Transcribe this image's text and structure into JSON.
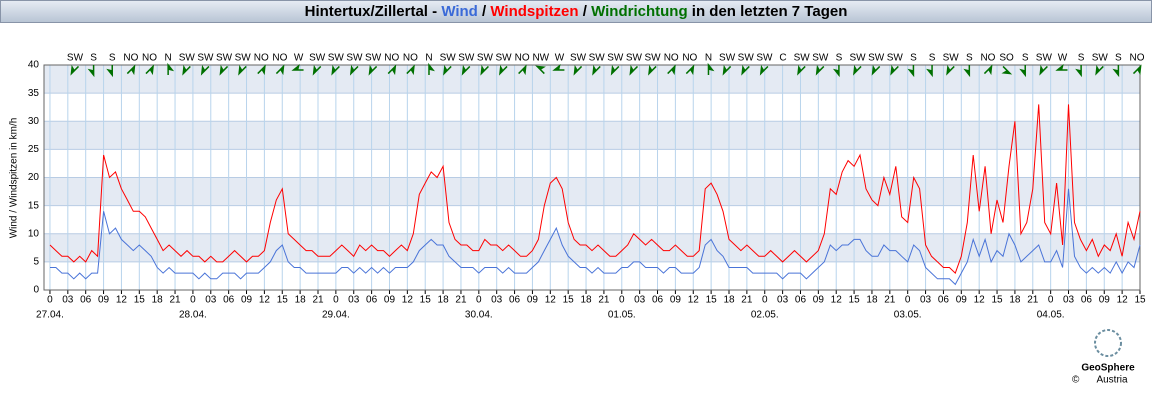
{
  "chart_data": {
    "type": "line",
    "title_prefix": "Hintertux/Zillertal -",
    "title_separator": "/",
    "title_suffix": "in den letzten 7 Tagen",
    "direction_name": "Windrichtung",
    "ylabel": "Wind / Windspitzen in km/h",
    "ylim": [
      0,
      40
    ],
    "yticks": [
      0,
      5,
      10,
      15,
      20,
      25,
      30,
      35,
      40
    ],
    "xlim": [
      -1,
      183
    ],
    "xticks": [
      0,
      {
        "value": 3,
        "label": "03"
      },
      {
        "value": 6,
        "label": "06"
      },
      {
        "value": 9,
        "label": "09"
      },
      12,
      15,
      18,
      21,
      {
        "value": 24,
        "label": "0"
      },
      {
        "value": 27,
        "label": "03"
      },
      {
        "value": 30,
        "label": "06"
      },
      {
        "value": 33,
        "label": "09"
      },
      {
        "value": 36,
        "label": "12"
      },
      {
        "value": 39,
        "label": "15"
      },
      {
        "value": 42,
        "label": "18"
      },
      {
        "value": 45,
        "label": "21"
      },
      {
        "value": 48,
        "label": "0"
      },
      {
        "value": 51,
        "label": "03"
      },
      {
        "value": 54,
        "label": "06"
      },
      {
        "value": 57,
        "label": "09"
      },
      {
        "value": 60,
        "label": "12"
      },
      {
        "value": 63,
        "label": "15"
      },
      {
        "value": 66,
        "label": "18"
      },
      {
        "value": 69,
        "label": "21"
      },
      {
        "value": 72,
        "label": "0"
      },
      {
        "value": 75,
        "label": "03"
      },
      {
        "value": 78,
        "label": "06"
      },
      {
        "value": 81,
        "label": "09"
      },
      {
        "value": 84,
        "label": "12"
      },
      {
        "value": 87,
        "label": "15"
      },
      {
        "value": 90,
        "label": "18"
      },
      {
        "value": 93,
        "label": "21"
      },
      {
        "value": 96,
        "label": "0"
      },
      {
        "value": 99,
        "label": "03"
      },
      {
        "value": 102,
        "label": "06"
      },
      {
        "value": 105,
        "label": "09"
      },
      {
        "value": 108,
        "label": "12"
      },
      {
        "value": 111,
        "label": "15"
      },
      {
        "value": 114,
        "label": "18"
      },
      {
        "value": 117,
        "label": "21"
      },
      {
        "value": 120,
        "label": "0"
      },
      {
        "value": 123,
        "label": "03"
      },
      {
        "value": 126,
        "label": "06"
      },
      {
        "value": 129,
        "label": "09"
      },
      {
        "value": 132,
        "label": "12"
      },
      {
        "value": 135,
        "label": "15"
      },
      {
        "value": 138,
        "label": "18"
      },
      {
        "value": 141,
        "label": "21"
      },
      {
        "value": 144,
        "label": "0"
      },
      {
        "value": 147,
        "label": "03"
      },
      {
        "value": 150,
        "label": "06"
      },
      {
        "value": 153,
        "label": "09"
      },
      {
        "value": 156,
        "label": "12"
      },
      {
        "value": 159,
        "label": "15"
      },
      {
        "value": 162,
        "label": "18"
      },
      {
        "value": 165,
        "label": "21"
      },
      {
        "value": 168,
        "label": "0"
      },
      {
        "value": 171,
        "label": "03"
      },
      {
        "value": 174,
        "label": "06"
      },
      {
        "value": 177,
        "label": "09"
      },
      {
        "value": 180,
        "label": "12"
      },
      {
        "value": 183,
        "label": "15"
      }
    ],
    "date_ticks": [
      {
        "value": 0,
        "label": "27.04."
      },
      {
        "value": 24,
        "label": "28.04."
      },
      {
        "value": 48,
        "label": "29.04."
      },
      {
        "value": 72,
        "label": "30.04."
      },
      {
        "value": 96,
        "label": "01.05."
      },
      {
        "value": 120,
        "label": "02.05."
      },
      {
        "value": 144,
        "label": "03.05."
      },
      {
        "value": 168,
        "label": "04.05."
      }
    ],
    "grid": true,
    "directions": [
      "SW",
      "S",
      "S",
      "NO",
      "NO",
      "N",
      "SW",
      "SW",
      "SW",
      "SW",
      "NO",
      "NO",
      "W",
      "SW",
      "SW",
      "SW",
      "SW",
      "NO",
      "NO",
      "N",
      "SW",
      "SW",
      "SW",
      "SW",
      "NO",
      "NW",
      "W",
      "SW",
      "SW",
      "SW",
      "SW",
      "SW",
      "NO",
      "NO",
      "N",
      "SW",
      "SW",
      "SW",
      "C",
      "SW",
      "SW",
      "S",
      "SW",
      "SW",
      "SW",
      "S",
      "S",
      "SW",
      "S",
      "NO",
      "SO",
      "S",
      "SW",
      "W",
      "S",
      "SW",
      "S",
      "NO"
    ],
    "direction_color": "#007000",
    "x": [
      0,
      1,
      2,
      3,
      4,
      5,
      6,
      7,
      8,
      9,
      10,
      11,
      12,
      13,
      14,
      15,
      16,
      17,
      18,
      19,
      20,
      21,
      22,
      23,
      24,
      25,
      26,
      27,
      28,
      29,
      30,
      31,
      32,
      33,
      34,
      35,
      36,
      37,
      38,
      39,
      40,
      41,
      42,
      43,
      44,
      45,
      46,
      47,
      48,
      49,
      50,
      51,
      52,
      53,
      54,
      55,
      56,
      57,
      58,
      59,
      60,
      61,
      62,
      63,
      64,
      65,
      66,
      67,
      68,
      69,
      70,
      71,
      72,
      73,
      74,
      75,
      76,
      77,
      78,
      79,
      80,
      81,
      82,
      83,
      84,
      85,
      86,
      87,
      88,
      89,
      90,
      91,
      92,
      93,
      94,
      95,
      96,
      97,
      98,
      99,
      100,
      101,
      102,
      103,
      104,
      105,
      106,
      107,
      108,
      109,
      110,
      111,
      112,
      113,
      114,
      115,
      116,
      117,
      118,
      119,
      120,
      121,
      122,
      123,
      124,
      125,
      126,
      127,
      128,
      129,
      130,
      131,
      132,
      133,
      134,
      135,
      136,
      137,
      138,
      139,
      140,
      141,
      142,
      143,
      144,
      145,
      146,
      147,
      148,
      149,
      150,
      151,
      152,
      153,
      154,
      155,
      156,
      157,
      158,
      159,
      160,
      161,
      162,
      163,
      164,
      165,
      166,
      167,
      168,
      169,
      170,
      171,
      172,
      173,
      174,
      175,
      176,
      177,
      178,
      179,
      180,
      181,
      182,
      183
    ],
    "series": [
      {
        "name": "Windspitzen",
        "color": "#ff0000",
        "values": [
          8,
          7,
          6,
          6,
          5,
          6,
          5,
          7,
          6,
          24,
          20,
          21,
          18,
          16,
          14,
          14,
          13,
          11,
          9,
          7,
          8,
          7,
          6,
          7,
          6,
          6,
          5,
          6,
          5,
          5,
          6,
          7,
          6,
          5,
          6,
          6,
          7,
          12,
          16,
          18,
          10,
          9,
          8,
          7,
          7,
          6,
          6,
          6,
          7,
          8,
          7,
          6,
          8,
          7,
          8,
          7,
          7,
          6,
          7,
          8,
          7,
          10,
          17,
          19,
          21,
          20,
          22,
          12,
          9,
          8,
          8,
          7,
          7,
          9,
          8,
          8,
          7,
          8,
          7,
          6,
          6,
          7,
          9,
          15,
          19,
          20,
          18,
          12,
          9,
          8,
          8,
          7,
          8,
          7,
          6,
          6,
          7,
          8,
          10,
          9,
          8,
          9,
          8,
          7,
          7,
          8,
          7,
          6,
          6,
          7,
          18,
          19,
          17,
          14,
          9,
          8,
          7,
          8,
          7,
          6,
          6,
          7,
          6,
          5,
          6,
          7,
          6,
          5,
          6,
          7,
          10,
          18,
          17,
          21,
          23,
          22,
          24,
          18,
          16,
          15,
          20,
          17,
          22,
          13,
          12,
          20,
          18,
          8,
          6,
          5,
          4,
          4,
          3,
          6,
          12,
          24,
          14,
          22,
          10,
          16,
          12,
          22,
          30,
          10,
          12,
          18,
          33,
          12,
          10,
          19,
          8,
          33,
          12,
          9,
          7,
          9,
          6,
          8,
          7,
          10,
          6,
          12,
          9,
          14
        ]
      },
      {
        "name": "Wind",
        "color": "#4a74d8",
        "values": [
          4,
          4,
          3,
          3,
          2,
          3,
          2,
          3,
          3,
          14,
          10,
          11,
          9,
          8,
          7,
          8,
          7,
          6,
          4,
          3,
          4,
          3,
          3,
          3,
          3,
          2,
          3,
          2,
          2,
          3,
          3,
          3,
          2,
          3,
          3,
          3,
          4,
          5,
          7,
          8,
          5,
          4,
          4,
          3,
          3,
          3,
          3,
          3,
          3,
          4,
          4,
          3,
          4,
          3,
          4,
          3,
          4,
          3,
          4,
          4,
          4,
          5,
          7,
          8,
          9,
          8,
          8,
          6,
          5,
          4,
          4,
          4,
          3,
          4,
          4,
          4,
          3,
          4,
          3,
          3,
          3,
          4,
          5,
          7,
          9,
          11,
          8,
          6,
          5,
          4,
          4,
          3,
          4,
          3,
          3,
          3,
          4,
          4,
          5,
          5,
          4,
          4,
          4,
          3,
          4,
          4,
          3,
          3,
          3,
          4,
          8,
          9,
          7,
          6,
          4,
          4,
          4,
          4,
          3,
          3,
          3,
          3,
          3,
          2,
          3,
          3,
          3,
          2,
          3,
          4,
          5,
          8,
          7,
          8,
          8,
          9,
          9,
          7,
          6,
          6,
          8,
          7,
          7,
          6,
          5,
          8,
          7,
          4,
          3,
          2,
          2,
          2,
          1,
          3,
          5,
          9,
          6,
          9,
          5,
          7,
          6,
          10,
          8,
          5,
          6,
          7,
          8,
          5,
          5,
          7,
          4,
          18,
          6,
          4,
          3,
          4,
          3,
          4,
          3,
          5,
          3,
          5,
          4,
          8
        ]
      }
    ],
    "logo": {
      "name": "GeoSphere",
      "sub": "Austria",
      "copyright": "©"
    }
  }
}
